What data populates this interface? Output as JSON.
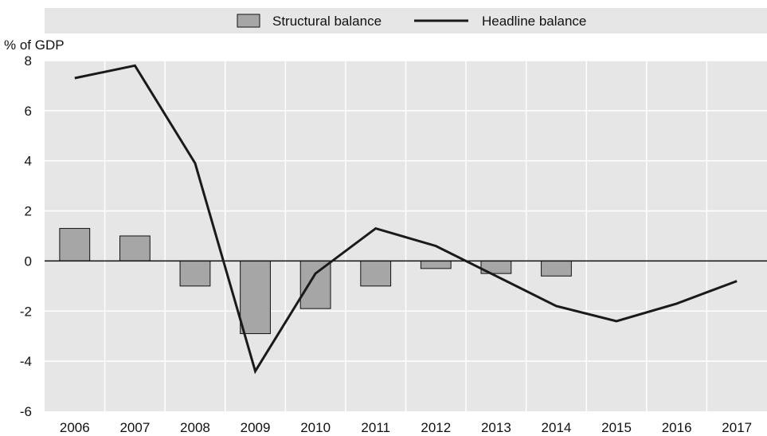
{
  "chart_data": {
    "type": "bar",
    "title": "",
    "ylabel": "% of GDP",
    "xlabel": "",
    "ylim": [
      -6,
      8
    ],
    "yticks": [
      -6,
      -4,
      -2,
      0,
      2,
      4,
      6,
      8
    ],
    "grid": true,
    "legend_position": "top",
    "categories": [
      "2006",
      "2007",
      "2008",
      "2009",
      "2010",
      "2011",
      "2012",
      "2013",
      "2014",
      "2015",
      "2016",
      "2017"
    ],
    "series": [
      {
        "name": "Structural balance",
        "type": "bar",
        "color": "#a6a6a6",
        "values": [
          1.3,
          1.0,
          -1.0,
          -2.9,
          -1.9,
          -1.0,
          -0.3,
          -0.5,
          -0.6,
          null,
          null,
          null
        ]
      },
      {
        "name": "Headline balance",
        "type": "line",
        "color": "#1a1a1a",
        "values": [
          7.3,
          7.8,
          3.9,
          -4.4,
          -0.5,
          1.3,
          0.6,
          -0.6,
          -1.8,
          -2.4,
          -1.7,
          -0.8
        ]
      }
    ]
  }
}
